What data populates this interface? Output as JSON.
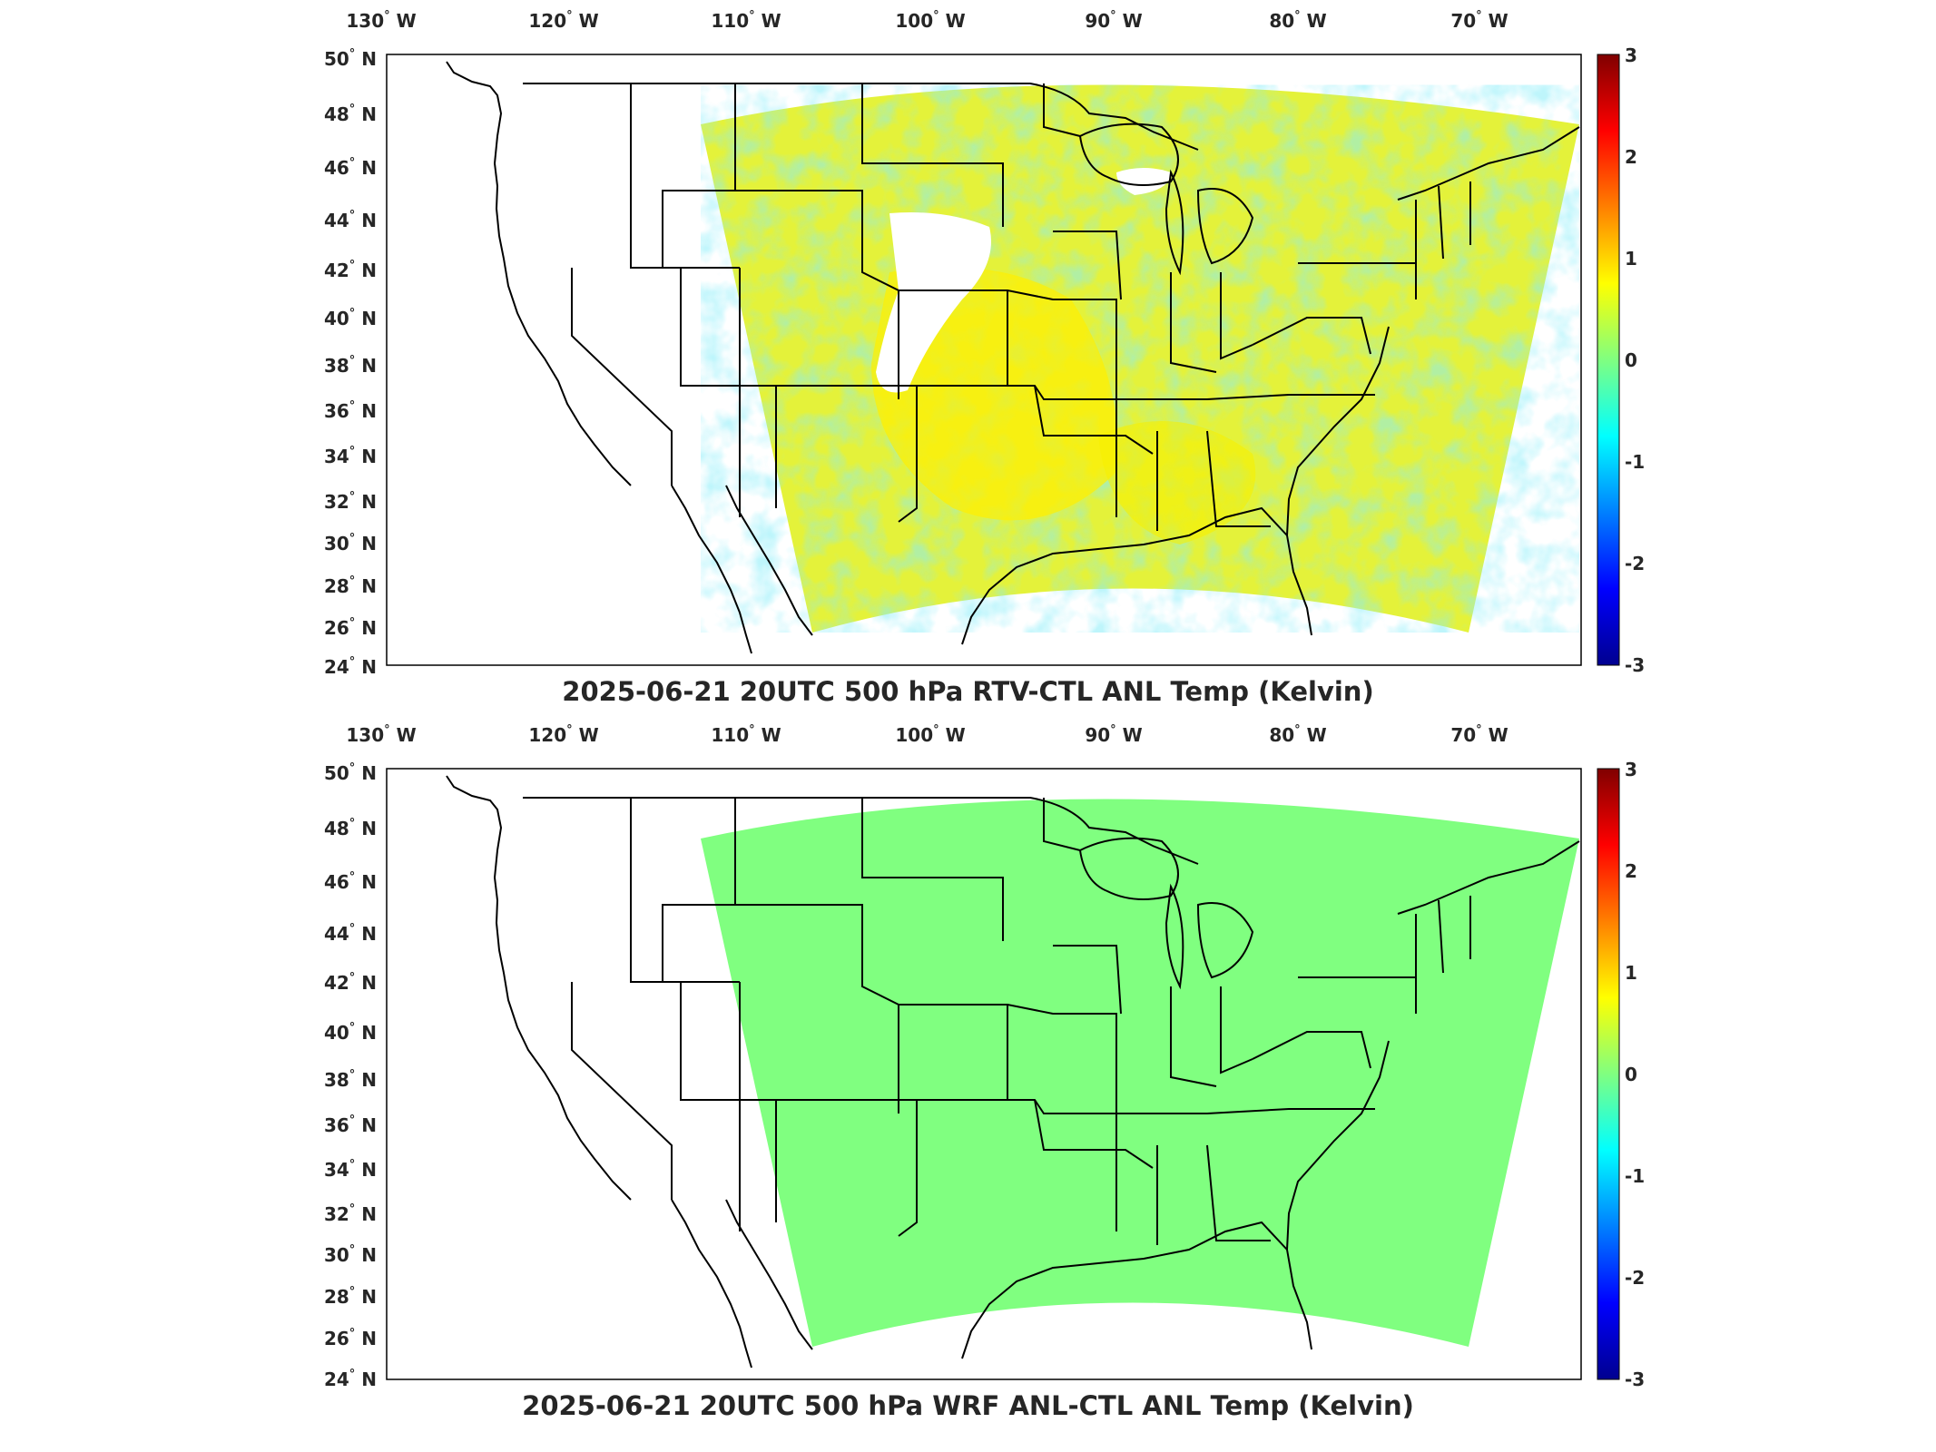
{
  "panels": [
    {
      "title": "2025-06-21 20UTC 500 hPa RTV-CTL ANL Temp (Kelvin)",
      "field": "varied",
      "longitude_labels": [
        "130",
        "120",
        "110",
        "100",
        "90",
        "80",
        "70"
      ],
      "longitude_hemisphere": "W",
      "latitude_labels": [
        "50",
        "48",
        "46",
        "44",
        "42",
        "40",
        "38",
        "36",
        "34",
        "32",
        "30",
        "28",
        "26",
        "24"
      ],
      "latitude_hemisphere": "N",
      "colorbar": {
        "min": -3,
        "max": 3,
        "tick_labels": [
          "3",
          "2",
          "1",
          "0",
          "-1",
          "-2",
          "-3"
        ]
      }
    },
    {
      "title": "2025-06-21 20UTC 500 hPa WRF ANL-CTL ANL Temp (Kelvin)",
      "field": "uniform",
      "longitude_labels": [
        "130",
        "120",
        "110",
        "100",
        "90",
        "80",
        "70"
      ],
      "longitude_hemisphere": "W",
      "latitude_labels": [
        "50",
        "48",
        "46",
        "44",
        "42",
        "40",
        "38",
        "36",
        "34",
        "32",
        "30",
        "28",
        "26",
        "24"
      ],
      "latitude_hemisphere": "N",
      "colorbar": {
        "min": -3,
        "max": 3,
        "tick_labels": [
          "3",
          "2",
          "1",
          "0",
          "-1",
          "-2",
          "-3"
        ]
      }
    }
  ],
  "colormap": "jet",
  "colors": {
    "uniform_field": "#80ff80",
    "warm_anomaly": "#ffef00",
    "cool_anomaly": "#40d8f0",
    "outline": "#000000"
  }
}
